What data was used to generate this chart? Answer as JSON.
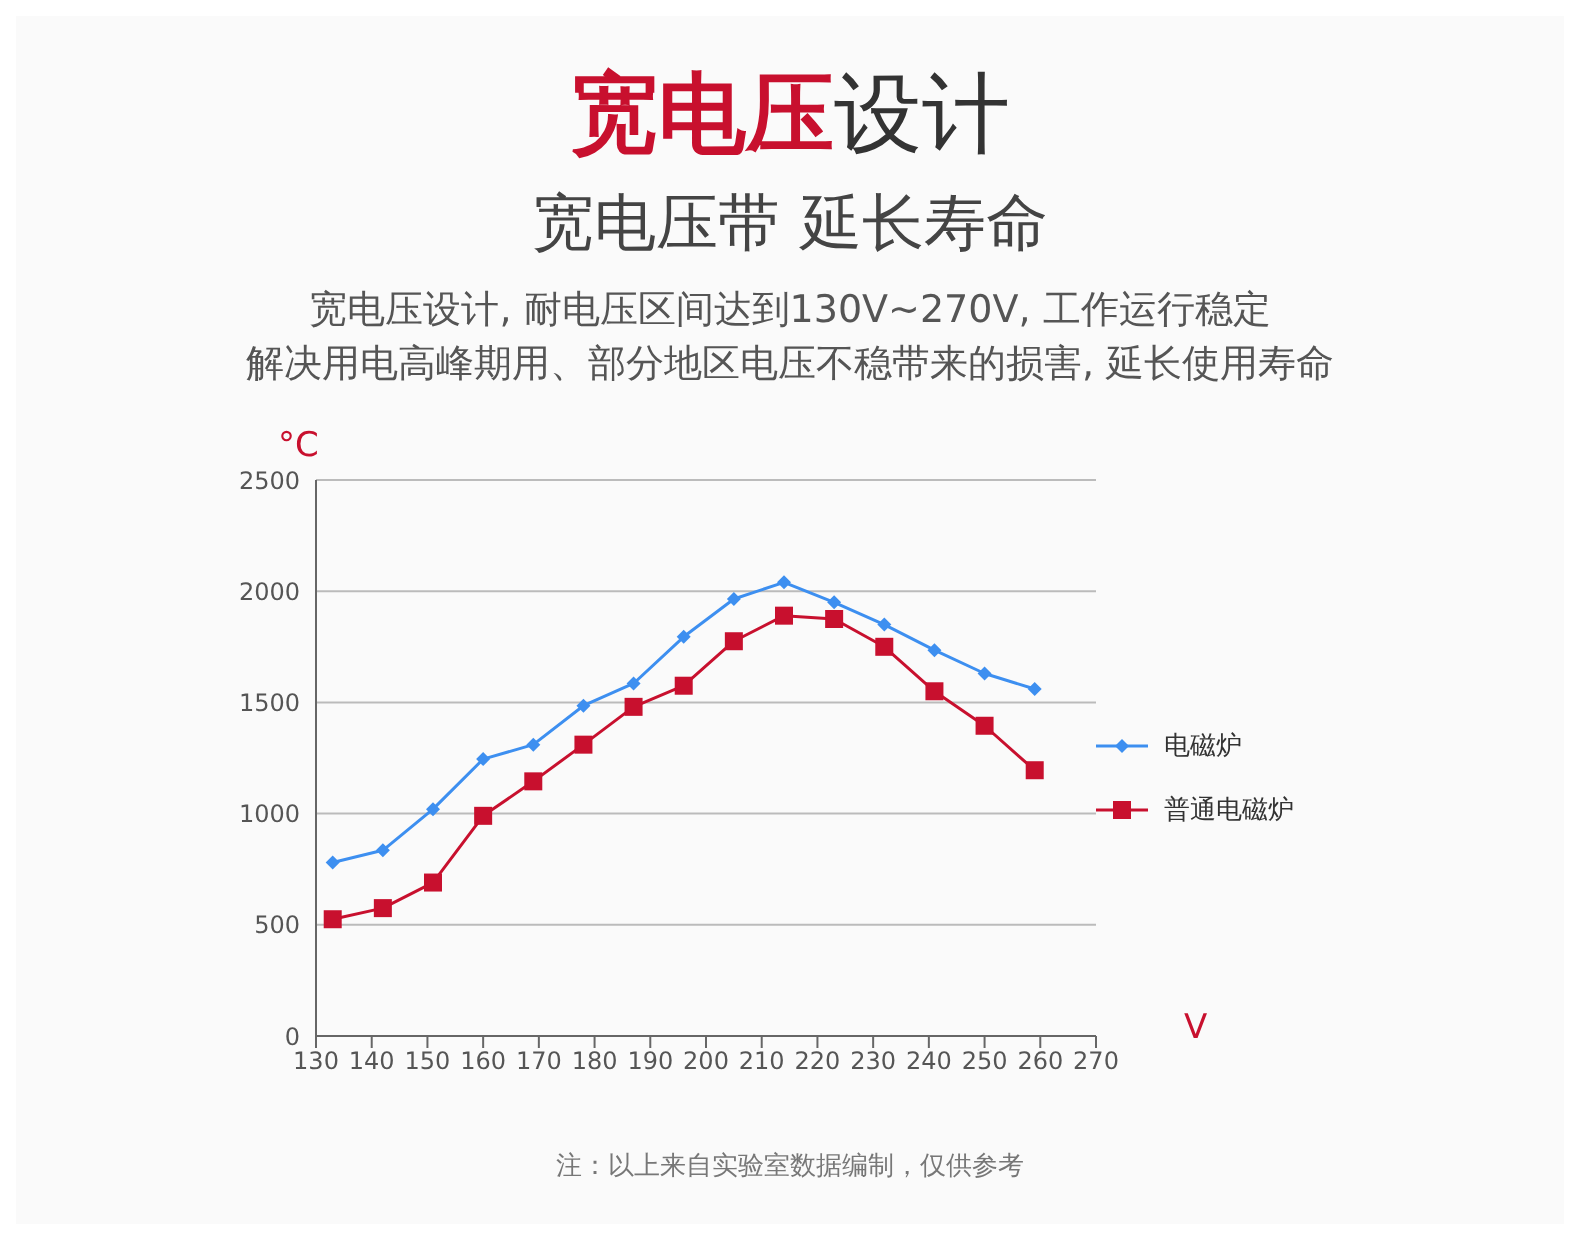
{
  "chart_data": {
    "type": "line",
    "title": "宽电压设计",
    "subtitle": "宽电压带 延长寿命",
    "annotations": [
      "宽电压设计, 耐电压区间达到130V~270V, 工作运行稳定",
      "解决用电高峰期用、部分地区电压不稳带来的损害, 延长使用寿命",
      "注：以上来自实验室数据编制，仅供参考"
    ],
    "xlabel": "V",
    "ylabel": "°C",
    "x": [
      133,
      142,
      151,
      160,
      169,
      178,
      187,
      196,
      205,
      214,
      223,
      232,
      241,
      250,
      259
    ],
    "series": [
      {
        "name": "电磁炉",
        "color": "#3d8ff0",
        "marker": "diamond",
        "values": [
          780,
          835,
          1020,
          1245,
          1310,
          1485,
          1585,
          1795,
          1965,
          2040,
          1950,
          1850,
          1735,
          1630,
          1560
        ]
      },
      {
        "name": "普通电磁炉",
        "color": "#c8102e",
        "marker": "square",
        "values": [
          525,
          575,
          690,
          990,
          1145,
          1310,
          1480,
          1575,
          1775,
          1890,
          1875,
          1750,
          1550,
          1395,
          1195
        ]
      }
    ],
    "xlim": [
      130,
      270
    ],
    "xticks": [
      130,
      140,
      150,
      160,
      170,
      180,
      190,
      200,
      210,
      220,
      230,
      240,
      250,
      260,
      270
    ],
    "ylim": [
      0,
      2500
    ],
    "yticks": [
      0,
      500,
      1000,
      1500,
      2000,
      2500
    ],
    "grid": "y",
    "legend": "right"
  }
}
